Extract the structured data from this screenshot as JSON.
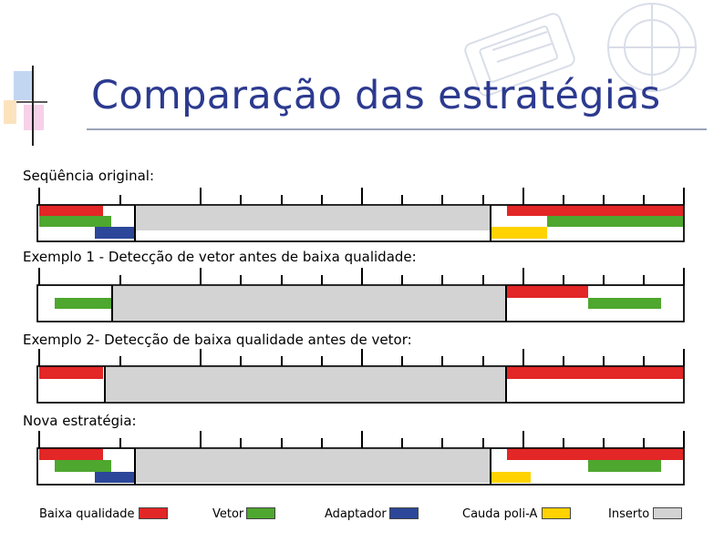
{
  "slide": {
    "title": "Comparação das estratégias"
  },
  "colors": {
    "baixa_qualidade": "#e32626",
    "vetor": "#4ea72e",
    "adaptador": "#2c4799",
    "cauda": "#ffd200",
    "inserto": "#d3d3d3",
    "title": "#2c3a8f"
  },
  "sections": [
    {
      "label": "Seqüência original:"
    },
    {
      "label": "Exemplo 1 - Detecção de vetor antes de baixa qualidade:"
    },
    {
      "label": "Exemplo 2- Detecção de baixa qualidade antes de vetor:"
    },
    {
      "label": "Nova estratégia:"
    }
  ],
  "legend": [
    {
      "label": "Baixa qualidade",
      "color_key": "baixa_qualidade"
    },
    {
      "label": "Vetor",
      "color_key": "vetor"
    },
    {
      "label": "Adaptador",
      "color_key": "adaptador"
    },
    {
      "label": "Cauda poli-A",
      "color_key": "cauda"
    },
    {
      "label": "Inserto",
      "color_key": "inserto"
    }
  ]
}
